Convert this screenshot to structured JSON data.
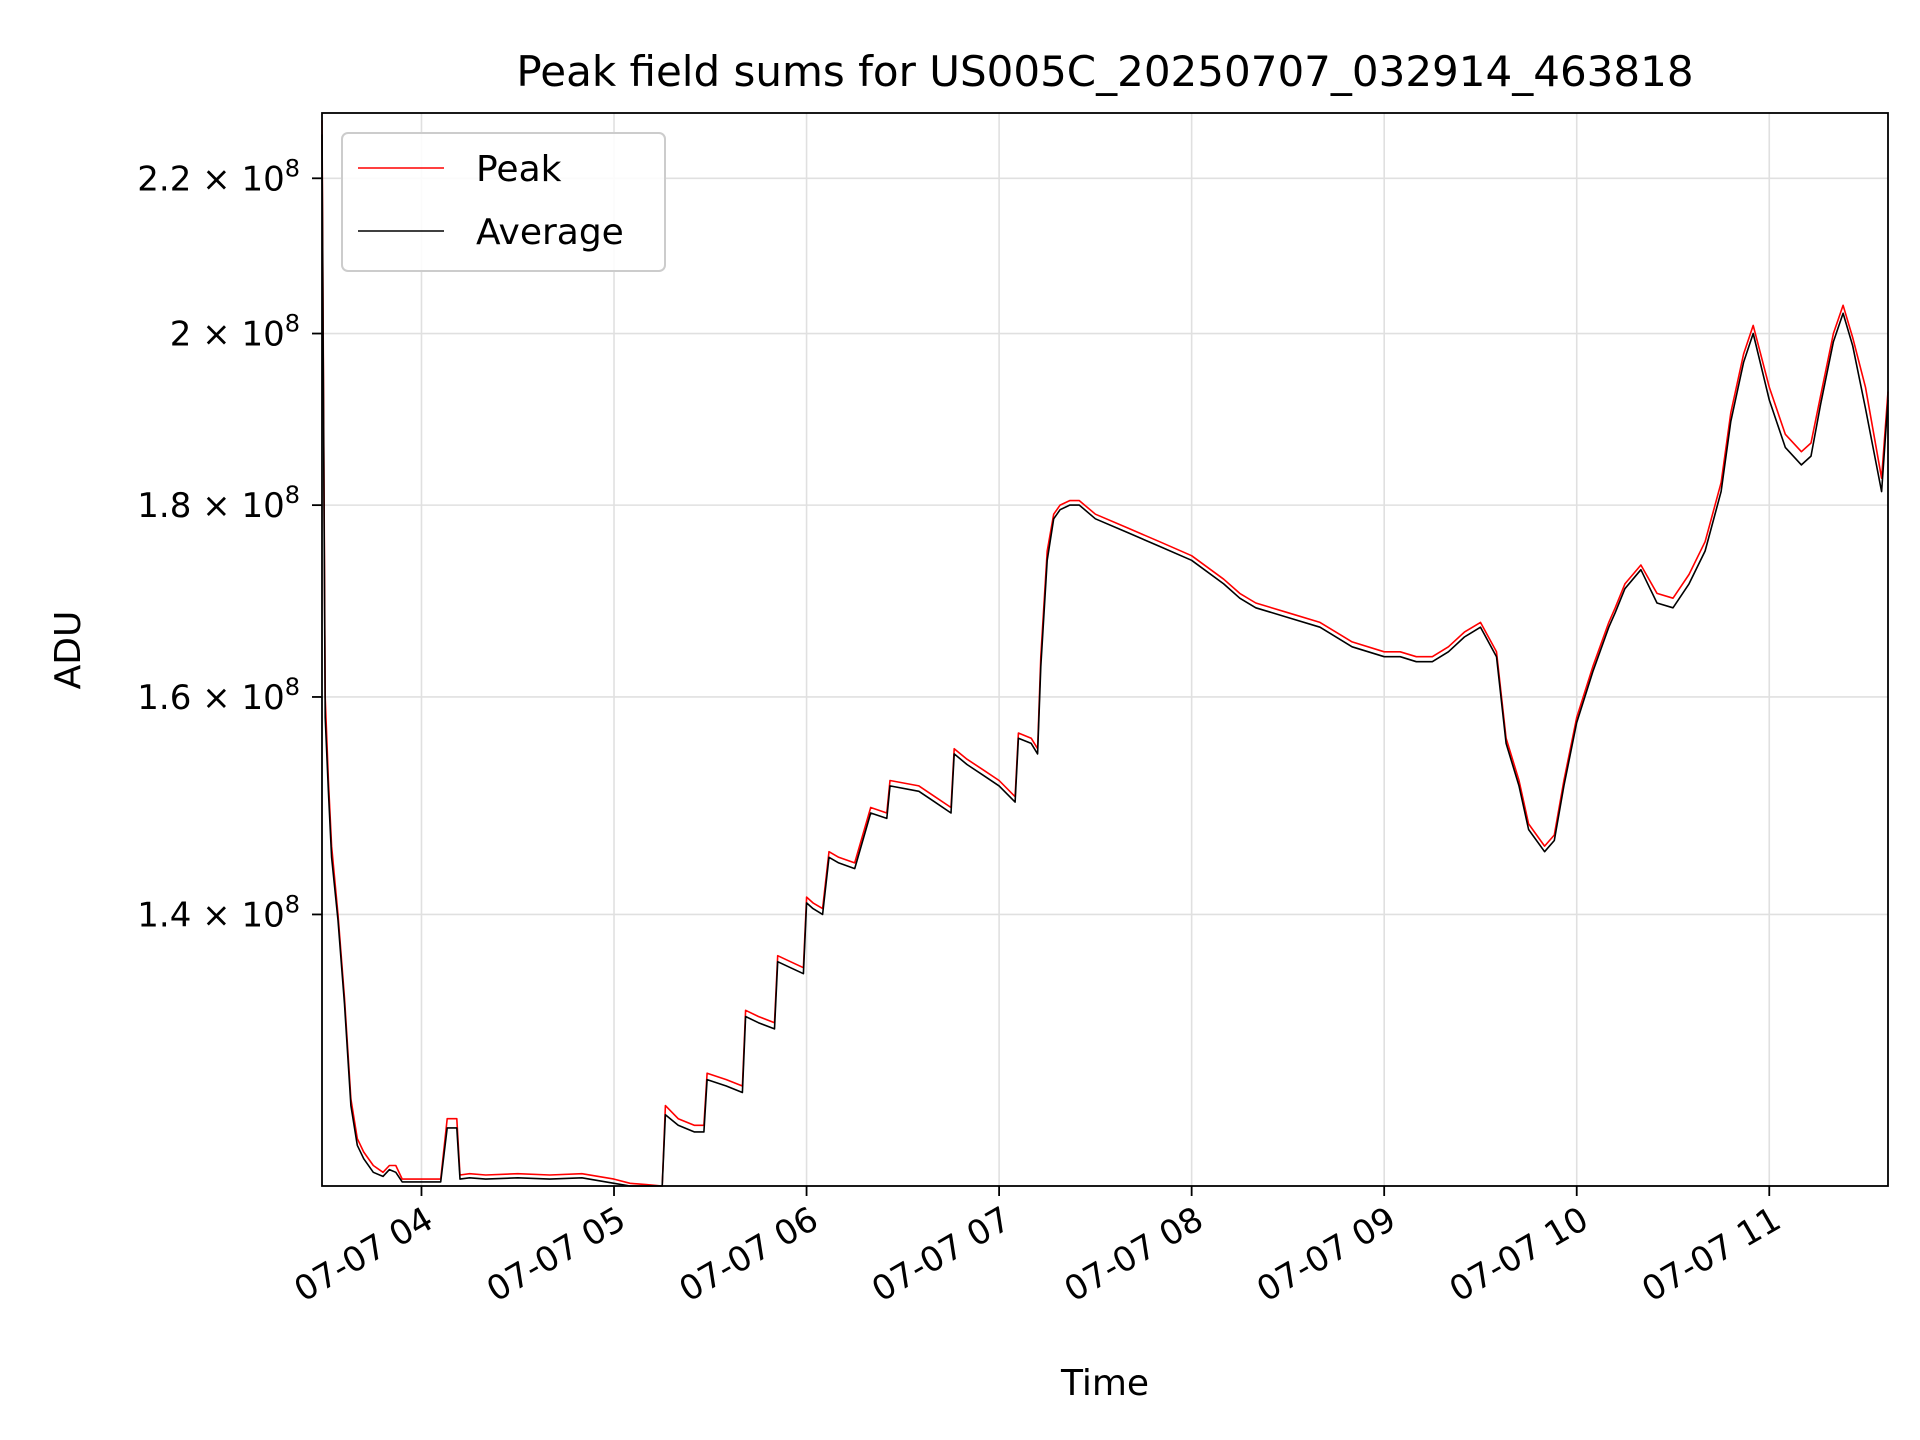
{
  "chart_data": {
    "type": "line",
    "title": "Peak field sums for US005C_20250707_032914_463818",
    "xlabel": "Time",
    "ylabel": "ADU",
    "yscale": "log",
    "ylim": [
      118500000,
      229000000
    ],
    "xlim": [
      "07-07 03:29",
      "07-07 11:37"
    ],
    "grid": true,
    "legend_position": "upper-left",
    "x_ticks": [
      {
        "label": "07-07 04",
        "value": "04:00"
      },
      {
        "label": "07-07 05",
        "value": "05:00"
      },
      {
        "label": "07-07 06",
        "value": "06:00"
      },
      {
        "label": "07-07 07",
        "value": "07:00"
      },
      {
        "label": "07-07 08",
        "value": "08:00"
      },
      {
        "label": "07-07 09",
        "value": "09:00"
      },
      {
        "label": "07-07 10",
        "value": "10:00"
      },
      {
        "label": "07-07 11",
        "value": "11:00"
      }
    ],
    "y_ticks": [
      {
        "value": 140000000,
        "mantissa": "1.4",
        "base": "10",
        "exp": "8"
      },
      {
        "value": 160000000,
        "mantissa": "1.6",
        "base": "10",
        "exp": "8"
      },
      {
        "value": 180000000,
        "mantissa": "1.8",
        "base": "10",
        "exp": "8"
      },
      {
        "value": 200000000,
        "mantissa": "2",
        "base": "10",
        "exp": "8"
      },
      {
        "value": 220000000,
        "mantissa": "2.2",
        "base": "10",
        "exp": "8"
      }
    ],
    "x": [
      "03:29",
      "03:30",
      "03:31",
      "03:32",
      "03:34",
      "03:36",
      "03:38",
      "03:40",
      "03:42",
      "03:45",
      "03:48",
      "03:50",
      "03:52",
      "03:54",
      "03:56",
      "03:58",
      "04:00",
      "04:02",
      "04:04",
      "04:06",
      "04:08",
      "04:10",
      "04:11",
      "04:12",
      "04:15",
      "04:20",
      "04:30",
      "04:40",
      "04:50",
      "05:00",
      "05:05",
      "05:10",
      "05:15",
      "05:16",
      "05:20",
      "05:25",
      "05:28",
      "05:29",
      "05:35",
      "05:40",
      "05:41",
      "05:45",
      "05:50",
      "05:51",
      "05:55",
      "05:59",
      "06:00",
      "06:02",
      "06:05",
      "06:07",
      "06:10",
      "06:15",
      "06:20",
      "06:25",
      "06:26",
      "06:35",
      "06:40",
      "06:45",
      "06:46",
      "06:50",
      "06:55",
      "07:00",
      "07:05",
      "07:06",
      "07:10",
      "07:12",
      "07:13",
      "07:15",
      "07:17",
      "07:19",
      "07:22",
      "07:25",
      "07:30",
      "07:40",
      "07:50",
      "08:00",
      "08:10",
      "08:15",
      "08:20",
      "08:30",
      "08:40",
      "08:50",
      "09:00",
      "09:05",
      "09:10",
      "09:15",
      "09:20",
      "09:25",
      "09:30",
      "09:35",
      "09:38",
      "09:42",
      "09:45",
      "09:50",
      "09:53",
      "09:56",
      "10:00",
      "10:05",
      "10:10",
      "10:12",
      "10:15",
      "10:20",
      "10:25",
      "10:30",
      "10:35",
      "10:40",
      "10:45",
      "10:48",
      "10:52",
      "10:55",
      "11:00",
      "11:05",
      "11:10",
      "11:13",
      "11:16",
      "11:20",
      "11:23",
      "11:26",
      "11:30",
      "11:35",
      "11:37"
    ],
    "series": [
      {
        "name": "Peak",
        "color": "#ff0000",
        "values": [
          228000000,
          160000000,
          152000000,
          146000000,
          140000000,
          133000000,
          125000000,
          122000000,
          121000000,
          120000000,
          119500000,
          120000000,
          120000000,
          119000000,
          119000000,
          119000000,
          119000000,
          119000000,
          119000000,
          119000000,
          123500000,
          123500000,
          123500000,
          119300000,
          119400000,
          119300000,
          119400000,
          119300000,
          119400000,
          119000000,
          118700000,
          118600000,
          118500000,
          124500000,
          123500000,
          123000000,
          123000000,
          127000000,
          126500000,
          126000000,
          132000000,
          131500000,
          131000000,
          136500000,
          136000000,
          135500000,
          141500000,
          141000000,
          140500000,
          145500000,
          145000000,
          144500000,
          149500000,
          149000000,
          152000000,
          151500000,
          150500000,
          149500000,
          155000000,
          154000000,
          153000000,
          152000000,
          150500000,
          156500000,
          156000000,
          155000000,
          164000000,
          175000000,
          179000000,
          180000000,
          180500000,
          180500000,
          179000000,
          177500000,
          176000000,
          174500000,
          172000000,
          170500000,
          169500000,
          168500000,
          167500000,
          165500000,
          164500000,
          164500000,
          164000000,
          164000000,
          165000000,
          166500000,
          167500000,
          164500000,
          156000000,
          152000000,
          148000000,
          146000000,
          147000000,
          152000000,
          158000000,
          163000000,
          167500000,
          169000000,
          171500000,
          173500000,
          170500000,
          170000000,
          172500000,
          176000000,
          182500000,
          190500000,
          197500000,
          201000000,
          193500000,
          188000000,
          186000000,
          187000000,
          192500000,
          200000000,
          203500000,
          199500000,
          193500000,
          183000000,
          193000000
        ]
      },
      {
        "name": "Average",
        "color": "#000000",
        "values": [
          226000000,
          158000000,
          151000000,
          145000000,
          139500000,
          132500000,
          124500000,
          121500000,
          120500000,
          119500000,
          119200000,
          119700000,
          119500000,
          118800000,
          118800000,
          118800000,
          118800000,
          118800000,
          118800000,
          118800000,
          122800000,
          122800000,
          122800000,
          119000000,
          119100000,
          119000000,
          119100000,
          119000000,
          119100000,
          118700000,
          118500000,
          118500000,
          118500000,
          123800000,
          123000000,
          122500000,
          122500000,
          126500000,
          126000000,
          125500000,
          131500000,
          131000000,
          130500000,
          136000000,
          135500000,
          135000000,
          141000000,
          140500000,
          140000000,
          145000000,
          144500000,
          144000000,
          149000000,
          148500000,
          151500000,
          151000000,
          150000000,
          149000000,
          154500000,
          153500000,
          152500000,
          151500000,
          150000000,
          156000000,
          155500000,
          154500000,
          163000000,
          174000000,
          178500000,
          179500000,
          180000000,
          180000000,
          178500000,
          177000000,
          175500000,
          174000000,
          171500000,
          170000000,
          169000000,
          168000000,
          167000000,
          165000000,
          164000000,
          164000000,
          163500000,
          163500000,
          164500000,
          166000000,
          167000000,
          164000000,
          155500000,
          151500000,
          147500000,
          145500000,
          146500000,
          151500000,
          157500000,
          162500000,
          167000000,
          168500000,
          171000000,
          173000000,
          169500000,
          169000000,
          171500000,
          175000000,
          181500000,
          189500000,
          196500000,
          200000000,
          192000000,
          186500000,
          184500000,
          185500000,
          191500000,
          199000000,
          202500000,
          198500000,
          191000000,
          181500000,
          192000000
        ]
      }
    ]
  }
}
